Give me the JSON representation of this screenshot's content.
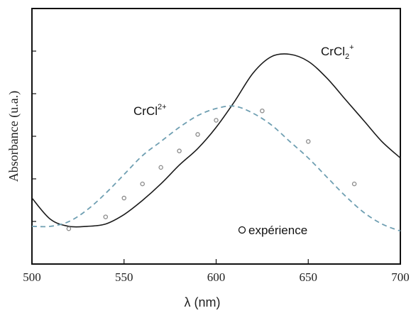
{
  "chart_data": {
    "type": "line",
    "xlabel": "λ (nm)",
    "ylabel": "Absorbance (u.a.)",
    "xlim": [
      500,
      700
    ],
    "ylim": [
      0,
      1
    ],
    "x_ticks": [
      "500",
      "550",
      "600",
      "650",
      "700"
    ],
    "y_ticks_labeled": false,
    "y_tick_count": 6,
    "grid": false,
    "legend_position": "bottom-center",
    "colors": {
      "solid": "#1a1a1a",
      "dashed": "#6f9fb2",
      "points": "#8a8a8a"
    },
    "series": [
      {
        "label_text": "CrCl",
        "label_sub": "2",
        "label_sup": "+",
        "style": "solid",
        "x": [
          500,
          510,
          520,
          530,
          540,
          550,
          560,
          570,
          580,
          590,
          600,
          610,
          620,
          630,
          640,
          650,
          660,
          670,
          680,
          690,
          700
        ],
        "y": [
          0.28,
          0.19,
          0.16,
          0.16,
          0.17,
          0.21,
          0.27,
          0.34,
          0.42,
          0.49,
          0.58,
          0.69,
          0.81,
          0.88,
          0.89,
          0.86,
          0.79,
          0.7,
          0.61,
          0.52,
          0.45
        ]
      },
      {
        "label_text": "CrCl",
        "label_sup": "2+",
        "style": "dashed",
        "x": [
          500,
          510,
          520,
          530,
          540,
          550,
          560,
          570,
          580,
          590,
          600,
          610,
          620,
          630,
          640,
          650,
          660,
          670,
          680,
          690,
          700
        ],
        "y": [
          0.16,
          0.16,
          0.18,
          0.23,
          0.3,
          0.38,
          0.46,
          0.52,
          0.58,
          0.63,
          0.66,
          0.67,
          0.64,
          0.59,
          0.52,
          0.45,
          0.37,
          0.29,
          0.22,
          0.17,
          0.14
        ]
      },
      {
        "name": "expérience",
        "style": "markers",
        "x": [
          520,
          540,
          550,
          560,
          570,
          580,
          590,
          600,
          625,
          650,
          675
        ],
        "y": [
          0.15,
          0.2,
          0.28,
          0.34,
          0.41,
          0.48,
          0.55,
          0.61,
          0.65,
          0.52,
          0.34
        ]
      }
    ]
  }
}
